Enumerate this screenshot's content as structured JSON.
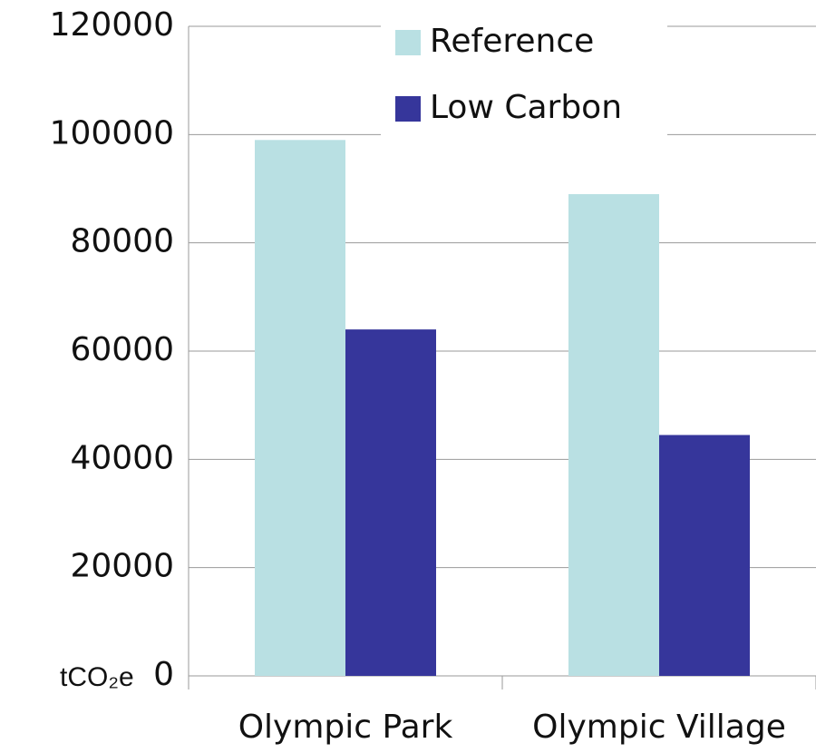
{
  "chart_data": {
    "type": "bar",
    "y_label": "tCO₂e",
    "categories": [
      "Olympic Park",
      "Olympic Village"
    ],
    "series": [
      {
        "name": "Reference",
        "color": "#b9e0e3",
        "values": [
          99000,
          89000
        ]
      },
      {
        "name": "Low Carbon",
        "color": "#36369b",
        "values": [
          64000,
          44500
        ]
      }
    ],
    "ylim": [
      0,
      120000
    ],
    "yticks": [
      0,
      20000,
      40000,
      60000,
      80000,
      100000,
      120000
    ],
    "grid": true,
    "legend": "top"
  }
}
